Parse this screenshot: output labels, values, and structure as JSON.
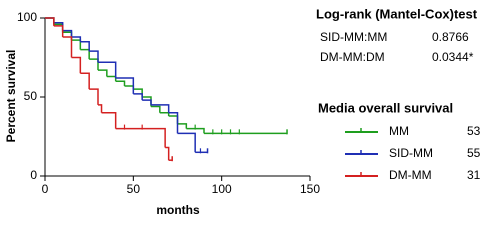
{
  "chart_data": {
    "type": "step",
    "ylabel": "Percent survival",
    "xlabel": "months",
    "xlim": [
      0,
      150
    ],
    "xticks": [
      0,
      50,
      100,
      150
    ],
    "ylim": [
      0,
      100
    ],
    "yticks": [
      0,
      50,
      100
    ],
    "stats_title": "Log-rank (Mantel-Cox)test",
    "stats": [
      {
        "label": "SID-MM:MM",
        "value": "0.8766"
      },
      {
        "label": "DM-MM:DM",
        "value": "0.0344*"
      }
    ],
    "legend_title": "Media overall survival",
    "series": [
      {
        "name": "MM",
        "color": "#1e9e1e",
        "median": 53,
        "x": [
          0,
          5,
          10,
          15,
          20,
          25,
          30,
          35,
          40,
          45,
          50,
          55,
          60,
          65,
          70,
          75,
          80,
          90,
          137
        ],
        "values": [
          100,
          96,
          91,
          86,
          80,
          74,
          67,
          63,
          60,
          57,
          55,
          50,
          44,
          40,
          38,
          33,
          30,
          27,
          27
        ],
        "censored_x": [
          85,
          95,
          100,
          105,
          110
        ]
      },
      {
        "name": "SID-MM",
        "color": "#1f2fb4",
        "median": 55,
        "x": [
          0,
          5,
          10,
          15,
          20,
          25,
          30,
          40,
          50,
          55,
          60,
          70,
          75,
          85,
          92
        ],
        "values": [
          100,
          97,
          92,
          88,
          85,
          79,
          72,
          62,
          52,
          48,
          45,
          40,
          27,
          15,
          15
        ],
        "censored_x": [
          88
        ]
      },
      {
        "name": "DM-MM",
        "color": "#d42020",
        "median": 31,
        "x": [
          0,
          5,
          10,
          15,
          20,
          25,
          30,
          32,
          40,
          68,
          70,
          72
        ],
        "values": [
          100,
          95,
          88,
          75,
          65,
          55,
          45,
          40,
          30,
          18,
          10,
          10
        ],
        "censored_x": [
          45,
          55
        ]
      }
    ]
  }
}
